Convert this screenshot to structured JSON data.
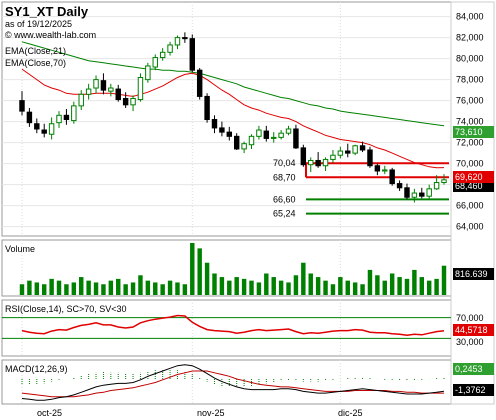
{
  "header": {
    "symbol": "SY1_XT Daily",
    "date": "as of 19/12/2025",
    "site": "© www.wealth-lab.com"
  },
  "price_panel": {
    "legend": [
      "EMA(Close,21)",
      "EMA(Close,70)"
    ],
    "y_ticks": [
      64,
      66,
      68,
      70,
      72,
      74,
      76,
      78,
      80,
      82,
      84
    ],
    "y_tick_labels": [
      "64,000",
      "66,000",
      "68,000",
      "70,000",
      "72,000",
      "74,000",
      "76,000",
      "78,000",
      "80,000",
      "82,000",
      "84,000"
    ],
    "ylim": [
      63.3,
      85.2
    ],
    "last_price_label": "68,460",
    "ema70_label": "73,610",
    "ema21_label": "69,620",
    "levels": [
      {
        "label": "70,04",
        "value": 70.04,
        "color": "#e00000"
      },
      {
        "label": "68,70",
        "value": 68.7,
        "color": "#e00000"
      },
      {
        "label": "66,60",
        "value": 66.6,
        "color": "#008000"
      },
      {
        "label": "65,24",
        "value": 65.24,
        "color": "#008000"
      }
    ]
  },
  "volume_panel": {
    "title": "Volume",
    "last_label": "816.639"
  },
  "rsi_panel": {
    "title": "RSI(Close,14), SC>70, SV<30",
    "y_tick_labels": [
      "70,000",
      "30,000"
    ],
    "last_label": "44,5718"
  },
  "macd_panel": {
    "title": "MACD(12,26,9)",
    "label_signal": "0,2453",
    "label_macd": "-1,3762"
  },
  "x_axis": {
    "labels": [
      "oct-25",
      "nov-25",
      "dic-25"
    ]
  },
  "colors": {
    "up": "#008000",
    "down": "#000000",
    "ema21": "#e00000",
    "ema70": "#008000",
    "volume": "#008000",
    "rsi": "#e00000",
    "panel_bg": "#ffffff",
    "label_red": "#e00000",
    "label_green": "#2f9f2f",
    "label_dark": "#000000"
  },
  "chart_data": [
    {
      "type": "candlestick",
      "x": [
        "2025-10-01",
        "2025-10-02",
        "2025-10-03",
        "2025-10-06",
        "2025-10-07",
        "2025-10-08",
        "2025-10-09",
        "2025-10-10",
        "2025-10-13",
        "2025-10-14",
        "2025-10-15",
        "2025-10-16",
        "2025-10-17",
        "2025-10-20",
        "2025-10-21",
        "2025-10-22",
        "2025-10-23",
        "2025-10-24",
        "2025-10-27",
        "2025-10-28",
        "2025-10-29",
        "2025-10-30",
        "2025-10-31",
        "2025-11-03",
        "2025-11-04",
        "2025-11-05",
        "2025-11-06",
        "2025-11-07",
        "2025-11-10",
        "2025-11-11",
        "2025-11-12",
        "2025-11-13",
        "2025-11-14",
        "2025-11-17",
        "2025-11-18",
        "2025-11-19",
        "2025-11-20",
        "2025-11-21",
        "2025-11-24",
        "2025-11-25",
        "2025-11-26",
        "2025-11-27",
        "2025-11-28",
        "2025-12-01",
        "2025-12-02",
        "2025-12-03",
        "2025-12-04",
        "2025-12-05",
        "2025-12-08",
        "2025-12-09",
        "2025-12-10",
        "2025-12-11",
        "2025-12-12",
        "2025-12-15",
        "2025-12-16",
        "2025-12-17",
        "2025-12-18",
        "2025-12-19"
      ],
      "open": [
        76.0,
        74.9,
        73.8,
        73.2,
        72.8,
        73.9,
        74.6,
        74.1,
        75.5,
        76.6,
        77.2,
        77.9,
        76.9,
        77.1,
        76.2,
        75.6,
        76.1,
        78.0,
        79.2,
        80.1,
        80.6,
        81.3,
        82.0,
        81.9,
        78.9,
        76.4,
        74.2,
        73.4,
        73.0,
        72.6,
        71.4,
        71.8,
        72.6,
        73.1,
        72.4,
        72.5,
        72.9,
        73.3,
        71.5,
        69.9,
        70.3,
        69.8,
        70.4,
        70.8,
        71.2,
        71.0,
        71.7,
        71.3,
        69.8,
        69.3,
        69.4,
        68.1,
        67.7,
        66.8,
        67.2,
        66.9,
        67.6,
        68.2
      ],
      "high": [
        76.9,
        75.3,
        74.3,
        73.8,
        74.4,
        75.0,
        75.2,
        75.9,
        77.0,
        77.6,
        78.4,
        78.6,
        77.6,
        77.5,
        76.8,
        76.5,
        78.6,
        79.6,
        80.4,
        81.0,
        81.6,
        82.2,
        82.5,
        82.3,
        79.1,
        76.7,
        74.6,
        74.0,
        73.5,
        72.9,
        72.1,
        72.8,
        73.6,
        73.6,
        73.0,
        73.2,
        73.6,
        73.7,
        71.8,
        70.6,
        71.1,
        70.6,
        71.3,
        71.6,
        71.9,
        71.8,
        72.1,
        71.6,
        70.0,
        69.8,
        69.6,
        68.4,
        68.1,
        67.6,
        67.7,
        68.0,
        68.9,
        69.0
      ],
      "low": [
        74.6,
        73.5,
        72.9,
        72.5,
        72.3,
        73.4,
        73.7,
        73.8,
        75.1,
        76.1,
        76.7,
        76.6,
        76.4,
        75.9,
        75.3,
        75.0,
        75.9,
        77.7,
        78.9,
        79.8,
        80.3,
        80.9,
        81.5,
        78.7,
        76.1,
        73.9,
        72.9,
        72.6,
        72.2,
        71.3,
        71.0,
        71.4,
        72.3,
        72.1,
        72.0,
        72.3,
        72.7,
        71.4,
        69.7,
        69.2,
        69.6,
        69.3,
        70.1,
        70.5,
        70.6,
        70.8,
        71.1,
        69.6,
        68.9,
        69.0,
        67.9,
        67.4,
        66.6,
        66.3,
        66.7,
        66.6,
        67.5,
        68.0
      ],
      "close": [
        75.0,
        73.9,
        73.3,
        72.9,
        73.8,
        74.6,
        74.2,
        75.5,
        76.6,
        77.1,
        78.0,
        77.0,
        77.2,
        76.1,
        75.6,
        76.2,
        78.2,
        79.3,
        80.1,
        80.6,
        81.3,
        82.0,
        81.9,
        78.9,
        76.4,
        74.2,
        73.4,
        73.0,
        72.6,
        71.4,
        71.9,
        72.6,
        73.2,
        72.4,
        72.5,
        72.9,
        73.3,
        71.5,
        69.9,
        70.3,
        69.8,
        70.4,
        70.8,
        71.2,
        71.0,
        71.7,
        71.3,
        69.8,
        69.3,
        69.4,
        68.1,
        67.7,
        66.8,
        67.2,
        66.9,
        67.6,
        68.2,
        68.46
      ]
    },
    {
      "type": "line",
      "title": "EMA(Close,21)",
      "values": [
        79.0,
        78.5,
        78.0,
        77.5,
        77.2,
        77.0,
        76.7,
        76.6,
        76.6,
        76.6,
        76.7,
        76.7,
        76.7,
        76.6,
        76.5,
        76.4,
        76.6,
        76.8,
        77.1,
        77.4,
        77.8,
        78.2,
        78.5,
        78.6,
        78.4,
        78.0,
        77.5,
        77.0,
        76.6,
        76.1,
        75.6,
        75.3,
        75.1,
        74.8,
        74.6,
        74.4,
        74.3,
        74.0,
        73.6,
        73.3,
        73.0,
        72.7,
        72.5,
        72.3,
        72.2,
        72.1,
        72.0,
        71.8,
        71.5,
        71.3,
        71.0,
        70.7,
        70.4,
        70.1,
        69.9,
        69.7,
        69.6,
        69.62
      ]
    },
    {
      "type": "line",
      "title": "EMA(Close,70)",
      "values": [
        81.6,
        81.4,
        81.2,
        81.0,
        80.8,
        80.6,
        80.4,
        80.2,
        80.0,
        79.8,
        79.7,
        79.6,
        79.5,
        79.4,
        79.3,
        79.2,
        79.1,
        79.0,
        79.0,
        78.9,
        78.9,
        78.8,
        78.8,
        78.7,
        78.6,
        78.4,
        78.2,
        78.0,
        77.8,
        77.6,
        77.3,
        77.1,
        76.9,
        76.7,
        76.5,
        76.3,
        76.2,
        76.0,
        75.8,
        75.6,
        75.5,
        75.3,
        75.2,
        75.0,
        74.9,
        74.8,
        74.7,
        74.6,
        74.5,
        74.4,
        74.3,
        74.2,
        74.1,
        74.0,
        73.9,
        73.8,
        73.7,
        73.61
      ]
    },
    {
      "type": "bar",
      "title": "Volume",
      "values": [
        0.3,
        0.4,
        0.35,
        0.3,
        0.45,
        0.4,
        0.3,
        0.35,
        0.5,
        0.4,
        0.35,
        0.3,
        0.4,
        0.45,
        0.3,
        0.35,
        0.55,
        0.4,
        0.35,
        0.3,
        0.4,
        0.35,
        0.3,
        1.45,
        1.3,
        0.9,
        0.6,
        0.5,
        0.4,
        0.5,
        0.45,
        0.4,
        0.35,
        0.6,
        0.5,
        0.4,
        0.35,
        0.55,
        0.9,
        0.6,
        0.5,
        0.4,
        0.3,
        0.5,
        0.4,
        0.35,
        0.3,
        0.7,
        0.55,
        0.4,
        0.6,
        0.5,
        0.45,
        0.7,
        0.5,
        0.4,
        0.45,
        0.816639
      ]
    },
    {
      "type": "line",
      "title": "RSI(Close,14)",
      "ylim": [
        0,
        100
      ],
      "values": [
        45,
        42,
        40,
        39,
        44,
        47,
        46,
        51,
        55,
        57,
        60,
        56,
        56,
        52,
        50,
        52,
        60,
        64,
        67,
        69,
        71,
        74,
        73,
        61,
        53,
        47,
        45,
        44,
        43,
        40,
        42,
        45,
        47,
        45,
        46,
        47,
        48,
        43,
        39,
        41,
        40,
        42,
        44,
        45,
        45,
        47,
        46,
        42,
        41,
        41,
        39,
        38,
        36,
        38,
        37,
        40,
        43,
        44.5718
      ]
    },
    {
      "type": "line",
      "title": "MACD(12,26,9)",
      "series": [
        {
          "name": "MACD",
          "values": [
            -2.2,
            -2.3,
            -2.4,
            -2.4,
            -2.3,
            -2.1,
            -2.0,
            -1.8,
            -1.5,
            -1.2,
            -0.9,
            -0.7,
            -0.6,
            -0.5,
            -0.5,
            -0.4,
            -0.1,
            0.3,
            0.6,
            0.9,
            1.2,
            1.5,
            1.6,
            1.5,
            1.1,
            0.6,
            0.1,
            -0.3,
            -0.6,
            -0.9,
            -1.1,
            -1.2,
            -1.2,
            -1.2,
            -1.2,
            -1.1,
            -1.1,
            -1.2,
            -1.4,
            -1.5,
            -1.6,
            -1.6,
            -1.5,
            -1.4,
            -1.3,
            -1.2,
            -1.1,
            -1.2,
            -1.3,
            -1.4,
            -1.5,
            -1.6,
            -1.7,
            -1.7,
            -1.7,
            -1.6,
            -1.5,
            -1.3762
          ]
        },
        {
          "name": "Signal",
          "values": [
            -1.6,
            -1.7,
            -1.8,
            -1.9,
            -2.0,
            -2.0,
            -2.0,
            -2.0,
            -1.9,
            -1.8,
            -1.6,
            -1.5,
            -1.3,
            -1.2,
            -1.1,
            -1.0,
            -0.8,
            -0.6,
            -0.4,
            -0.1,
            0.2,
            0.5,
            0.7,
            0.9,
            0.9,
            0.9,
            0.7,
            0.5,
            0.3,
            0.0,
            -0.2,
            -0.4,
            -0.6,
            -0.7,
            -0.8,
            -0.9,
            -0.9,
            -1.0,
            -1.1,
            -1.2,
            -1.3,
            -1.4,
            -1.4,
            -1.4,
            -1.4,
            -1.3,
            -1.3,
            -1.3,
            -1.3,
            -1.3,
            -1.4,
            -1.4,
            -1.5,
            -1.5,
            -1.6,
            -1.6,
            -1.6,
            -1.6
          ]
        }
      ]
    }
  ]
}
